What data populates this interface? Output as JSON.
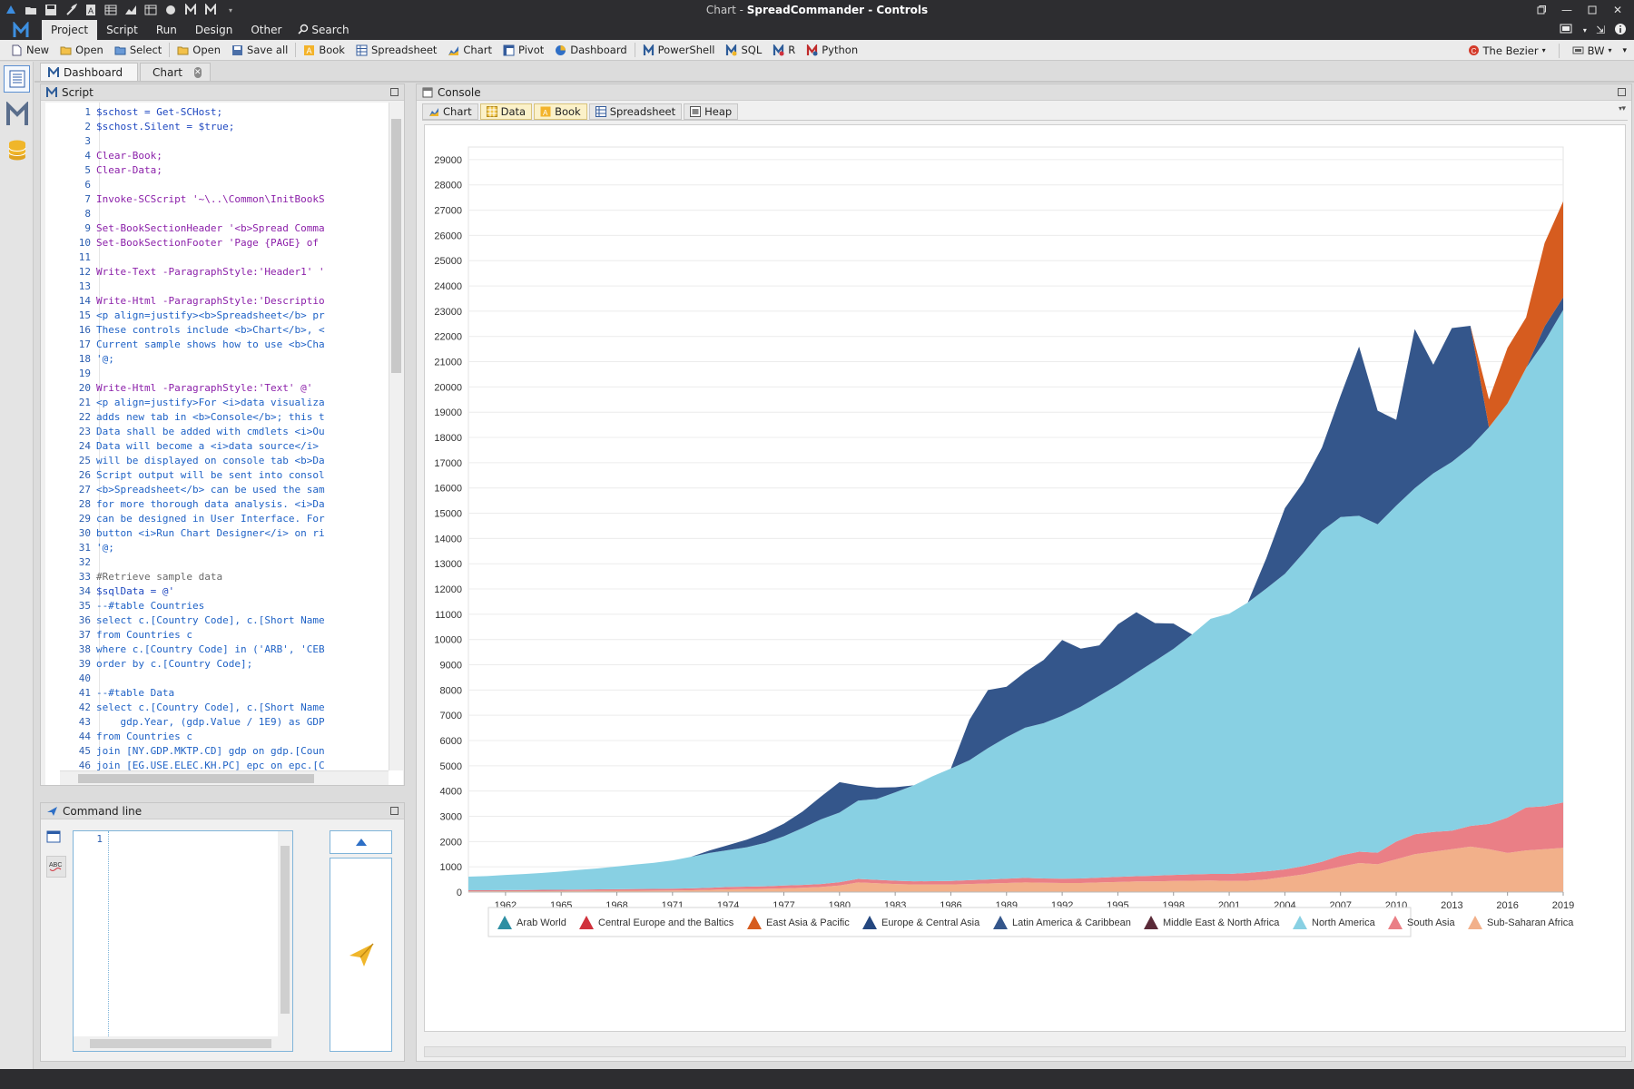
{
  "window": {
    "title_prefix": "Chart - ",
    "title_app": "SpreadCommander - Controls"
  },
  "menu": {
    "items": [
      "Project",
      "Script",
      "Run",
      "Design",
      "Other"
    ],
    "active": "Project",
    "search_label": "Search"
  },
  "toolbar": {
    "new_label": "New",
    "open_label": "Open",
    "select_label": "Select",
    "open2_label": "Open",
    "save_all_label": "Save all",
    "book_label": "Book",
    "spreadsheet_label": "Spreadsheet",
    "chart_label": "Chart",
    "pivot_label": "Pivot",
    "dashboard_label": "Dashboard",
    "powershell_label": "PowerShell",
    "sql_label": "SQL",
    "r_label": "R",
    "python_label": "Python",
    "skin_label": "The Bezier",
    "palette_label": "BW"
  },
  "doc_tabs": {
    "dashboard_label": "Dashboard",
    "chart_label": "Chart"
  },
  "script_panel": {
    "title": "Script",
    "lines": [
      {
        "n": "1",
        "text": "$schost = Get-SCHost;",
        "kind": "var"
      },
      {
        "n": "2",
        "text": "$schost.Silent = $true;",
        "kind": "var"
      },
      {
        "n": "3",
        "text": "",
        "kind": "code"
      },
      {
        "n": "4",
        "text": "Clear-Book;",
        "kind": "cmd"
      },
      {
        "n": "5",
        "text": "Clear-Data;",
        "kind": "cmd"
      },
      {
        "n": "6",
        "text": "",
        "kind": "code"
      },
      {
        "n": "7",
        "text": "Invoke-SCScript '~\\..\\Common\\InitBookS",
        "kind": "cmd"
      },
      {
        "n": "8",
        "text": "",
        "kind": "code"
      },
      {
        "n": "9",
        "text": "Set-BookSectionHeader '<b>Spread Comma",
        "kind": "cmd"
      },
      {
        "n": "10",
        "text": "Set-BookSectionFooter 'Page {PAGE} of",
        "kind": "cmd"
      },
      {
        "n": "11",
        "text": "",
        "kind": "code"
      },
      {
        "n": "12",
        "text": "Write-Text -ParagraphStyle:'Header1' '",
        "kind": "cmd"
      },
      {
        "n": "13",
        "text": "",
        "kind": "code"
      },
      {
        "n": "14",
        "text": "Write-Html -ParagraphStyle:'Descriptio",
        "kind": "cmd"
      },
      {
        "n": "15",
        "text": "<p align=justify><b>Spreadsheet</b> pr",
        "kind": "code"
      },
      {
        "n": "16",
        "text": "These controls include <b>Chart</b>, <",
        "kind": "code"
      },
      {
        "n": "17",
        "text": "Current sample shows how to use <b>Cha",
        "kind": "code"
      },
      {
        "n": "18",
        "text": "'@;",
        "kind": "code"
      },
      {
        "n": "19",
        "text": "",
        "kind": "code"
      },
      {
        "n": "20",
        "text": "Write-Html -ParagraphStyle:'Text' @'",
        "kind": "cmd"
      },
      {
        "n": "21",
        "text": "<p align=justify>For <i>data visualiza",
        "kind": "code"
      },
      {
        "n": "22",
        "text": "adds new tab in <b>Console</b>; this t",
        "kind": "code"
      },
      {
        "n": "23",
        "text": "Data shall be added with cmdlets <i>Ou",
        "kind": "code"
      },
      {
        "n": "24",
        "text": "Data will become a <i>data source</i>",
        "kind": "code"
      },
      {
        "n": "25",
        "text": "will be displayed on console tab <b>Da",
        "kind": "code"
      },
      {
        "n": "26",
        "text": "Script output will be sent into consol",
        "kind": "code"
      },
      {
        "n": "27",
        "text": "<b>Spreadsheet</b> can be used the sam",
        "kind": "code"
      },
      {
        "n": "28",
        "text": "for more thorough data analysis. <i>Da",
        "kind": "code"
      },
      {
        "n": "29",
        "text": "can be designed in User Interface. For",
        "kind": "code"
      },
      {
        "n": "30",
        "text": "button <i>Run Chart Designer</i> on ri",
        "kind": "code"
      },
      {
        "n": "31",
        "text": "'@;",
        "kind": "code"
      },
      {
        "n": "32",
        "text": "",
        "kind": "code"
      },
      {
        "n": "33",
        "text": "#Retrieve sample data",
        "kind": "cm"
      },
      {
        "n": "34",
        "text": "$sqlData = @'",
        "kind": "var"
      },
      {
        "n": "35",
        "text": "--#table Countries",
        "kind": "code"
      },
      {
        "n": "36",
        "text": "select c.[Country Code], c.[Short Name",
        "kind": "code"
      },
      {
        "n": "37",
        "text": "from Countries c",
        "kind": "code"
      },
      {
        "n": "38",
        "text": "where c.[Country Code] in ('ARB', 'CEB",
        "kind": "code"
      },
      {
        "n": "39",
        "text": "order by c.[Country Code];",
        "kind": "code"
      },
      {
        "n": "40",
        "text": "",
        "kind": "code"
      },
      {
        "n": "41",
        "text": "--#table Data",
        "kind": "code"
      },
      {
        "n": "42",
        "text": "select c.[Country Code], c.[Short Name",
        "kind": "code"
      },
      {
        "n": "43",
        "text": "    gdp.Year, (gdp.Value / 1E9) as GDP",
        "kind": "code"
      },
      {
        "n": "44",
        "text": "from Countries c",
        "kind": "code"
      },
      {
        "n": "45",
        "text": "join [NY.GDP.MKTP.CD] gdp on gdp.[Coun",
        "kind": "code"
      },
      {
        "n": "46",
        "text": "join [EG.USE.ELEC.KH.PC] epc on epc.[C",
        "kind": "code"
      }
    ]
  },
  "command_panel": {
    "title": "Command line",
    "line_number": "1"
  },
  "console_panel": {
    "title": "Console",
    "tabs": [
      "Chart",
      "Data",
      "Book",
      "Spreadsheet",
      "Heap"
    ],
    "selected_tabs": [
      "Data",
      "Book"
    ]
  },
  "chart_data": {
    "type": "area",
    "stacked": true,
    "x": [
      1960,
      1961,
      1962,
      1963,
      1964,
      1965,
      1966,
      1967,
      1968,
      1969,
      1970,
      1971,
      1972,
      1973,
      1974,
      1975,
      1976,
      1977,
      1978,
      1979,
      1980,
      1981,
      1982,
      1983,
      1984,
      1985,
      1986,
      1987,
      1988,
      1989,
      1990,
      1991,
      1992,
      1993,
      1994,
      1995,
      1996,
      1997,
      1998,
      1999,
      2000,
      2001,
      2002,
      2003,
      2004,
      2005,
      2006,
      2007,
      2008,
      2009,
      2010,
      2011,
      2012,
      2013,
      2014,
      2015,
      2016,
      2017,
      2018,
      2019
    ],
    "x_ticks": [
      1962,
      1965,
      1968,
      1971,
      1974,
      1977,
      1980,
      1983,
      1986,
      1989,
      1992,
      1995,
      1998,
      2001,
      2004,
      2007,
      2010,
      2013,
      2016,
      2019
    ],
    "ylim": [
      0,
      29500
    ],
    "y_ticks": [
      0,
      1000,
      2000,
      3000,
      4000,
      5000,
      6000,
      7000,
      8000,
      9000,
      10000,
      11000,
      12000,
      13000,
      14000,
      15000,
      16000,
      17000,
      18000,
      19000,
      20000,
      21000,
      22000,
      23000,
      24000,
      25000,
      26000,
      27000,
      28000,
      29000
    ],
    "grid": true,
    "legend_position": "bottom",
    "series": [
      {
        "name": "Arab World",
        "color": "#2e8fa3",
        "values": [
          0,
          0,
          0,
          0,
          0,
          0,
          0,
          0,
          0,
          0,
          0,
          0,
          0,
          0,
          0,
          0,
          0,
          0,
          0,
          0,
          0,
          0,
          0,
          0,
          0,
          0,
          0,
          0,
          0,
          0,
          0,
          0,
          0,
          0,
          0,
          0,
          0,
          0,
          0,
          0,
          0,
          0,
          0,
          0,
          0,
          0,
          0,
          0,
          0,
          0,
          0,
          0,
          0,
          0,
          0,
          0,
          0,
          0,
          0,
          0
        ]
      },
      {
        "name": "Central Europe and the Baltics",
        "color": "#d0313c",
        "values": [
          0,
          0,
          0,
          0,
          0,
          0,
          0,
          0,
          0,
          0,
          0,
          0,
          0,
          0,
          0,
          0,
          0,
          0,
          0,
          0,
          0,
          0,
          0,
          0,
          0,
          0,
          0,
          0,
          0,
          0,
          0,
          0,
          0,
          0,
          0,
          0,
          0,
          0,
          0,
          0,
          0,
          0,
          0,
          0,
          0,
          0,
          0,
          0,
          0,
          0,
          0,
          0,
          0,
          0,
          0,
          0,
          0,
          0,
          0,
          0
        ]
      },
      {
        "name": "Sub-Saharan Africa",
        "color": "#f2b08a",
        "values": [
          30,
          32,
          34,
          36,
          38,
          40,
          44,
          48,
          52,
          56,
          60,
          65,
          72,
          90,
          110,
          120,
          130,
          150,
          170,
          200,
          260,
          380,
          350,
          320,
          300,
          300,
          300,
          320,
          340,
          360,
          380,
          370,
          360,
          360,
          380,
          400,
          420,
          420,
          440,
          450,
          460,
          440,
          450,
          500,
          600,
          700,
          850,
          1000,
          1150,
          1100,
          1300,
          1500,
          1600,
          1700,
          1800,
          1700,
          1550,
          1650,
          1700,
          1750
        ]
      },
      {
        "name": "South Asia",
        "color": "#ea7f86",
        "values": [
          40,
          42,
          44,
          46,
          50,
          52,
          56,
          60,
          62,
          64,
          68,
          70,
          74,
          80,
          90,
          95,
          100,
          110,
          115,
          120,
          130,
          140,
          135,
          130,
          128,
          130,
          140,
          150,
          160,
          170,
          180,
          170,
          170,
          180,
          190,
          200,
          210,
          230,
          240,
          250,
          260,
          280,
          310,
          320,
          300,
          330,
          350,
          450,
          450,
          460,
          700,
          790,
          780,
          730,
          820,
          1000,
          1400,
          1700,
          1700,
          1800
        ]
      },
      {
        "name": "North America",
        "color": "#88d0e3",
        "values": [
          540,
          560,
          600,
          630,
          670,
          720,
          780,
          830,
          900,
          970,
          1030,
          1120,
          1250,
          1380,
          1460,
          1560,
          1720,
          1950,
          2250,
          2560,
          2760,
          3100,
          3200,
          3500,
          3800,
          4150,
          4450,
          4750,
          5200,
          5600,
          5950,
          6150,
          6450,
          6800,
          7200,
          7600,
          8050,
          8500,
          8950,
          9500,
          10100,
          10300,
          10700,
          11200,
          11700,
          12400,
          13100,
          13400,
          13300,
          13000,
          13300,
          13700,
          14200,
          14600,
          15000,
          15700,
          16400,
          17400,
          18400,
          19500
        ]
      },
      {
        "name": "Latin America & Caribbean",
        "color": "#34568b",
        "values": [
          0,
          0,
          0,
          0,
          0,
          0,
          0,
          0,
          0,
          0,
          0,
          0,
          0,
          100,
          200,
          300,
          400,
          500,
          650,
          900,
          1200,
          600,
          450,
          200,
          0,
          0,
          0,
          1600,
          2300,
          2000,
          2200,
          2500,
          3000,
          2300,
          2000,
          2400,
          2400,
          1500,
          1000,
          0,
          0,
          0,
          0,
          1200,
          2600,
          2800,
          3300,
          4800,
          6700,
          4500,
          3400,
          6300,
          4300,
          5300,
          4800,
          0,
          0,
          0,
          600,
          500
        ]
      },
      {
        "name": "East Asia & Pacific",
        "color": "#d65c1f",
        "values": [
          0,
          0,
          0,
          0,
          0,
          0,
          0,
          0,
          0,
          0,
          0,
          0,
          0,
          0,
          0,
          0,
          0,
          0,
          0,
          0,
          0,
          0,
          0,
          0,
          0,
          0,
          0,
          0,
          0,
          0,
          0,
          0,
          0,
          0,
          0,
          0,
          0,
          0,
          0,
          0,
          0,
          0,
          0,
          0,
          0,
          0,
          0,
          0,
          0,
          0,
          0,
          0,
          0,
          0,
          0,
          1100,
          2200,
          2000,
          3300,
          3800
        ]
      },
      {
        "name": "Europe & Central Asia",
        "color": "#24477f",
        "values": [
          0,
          0,
          0,
          0,
          0,
          0,
          0,
          0,
          0,
          0,
          0,
          0,
          0,
          0,
          0,
          0,
          0,
          0,
          0,
          0,
          0,
          0,
          0,
          0,
          0,
          0,
          0,
          0,
          0,
          0,
          0,
          0,
          0,
          0,
          0,
          0,
          0,
          0,
          0,
          0,
          0,
          0,
          0,
          0,
          0,
          0,
          0,
          0,
          0,
          0,
          0,
          0,
          0,
          0,
          0,
          0,
          0,
          0,
          0,
          0
        ]
      },
      {
        "name": "Middle East & North Africa",
        "color": "#5a2a38",
        "values": [
          0,
          0,
          0,
          0,
          0,
          0,
          0,
          0,
          0,
          0,
          0,
          0,
          0,
          0,
          0,
          0,
          0,
          0,
          0,
          0,
          0,
          0,
          0,
          0,
          0,
          0,
          0,
          0,
          0,
          0,
          0,
          0,
          0,
          0,
          0,
          0,
          0,
          0,
          0,
          0,
          0,
          0,
          0,
          0,
          0,
          0,
          0,
          0,
          0,
          0,
          0,
          0,
          0,
          0,
          0,
          0,
          0,
          0,
          0,
          0
        ]
      }
    ],
    "legend": [
      {
        "name": "Arab World",
        "color": "#2e8fa3"
      },
      {
        "name": "Central Europe and the Baltics",
        "color": "#d0313c"
      },
      {
        "name": "East Asia & Pacific",
        "color": "#d65c1f"
      },
      {
        "name": "Europe & Central Asia",
        "color": "#24477f"
      },
      {
        "name": "Latin America & Caribbean",
        "color": "#34568b"
      },
      {
        "name": "Middle East & North Africa",
        "color": "#5a2a38"
      },
      {
        "name": "North America",
        "color": "#88d0e3"
      },
      {
        "name": "South Asia",
        "color": "#ea7f86"
      },
      {
        "name": "Sub-Saharan Africa",
        "color": "#f2b08a"
      }
    ]
  }
}
